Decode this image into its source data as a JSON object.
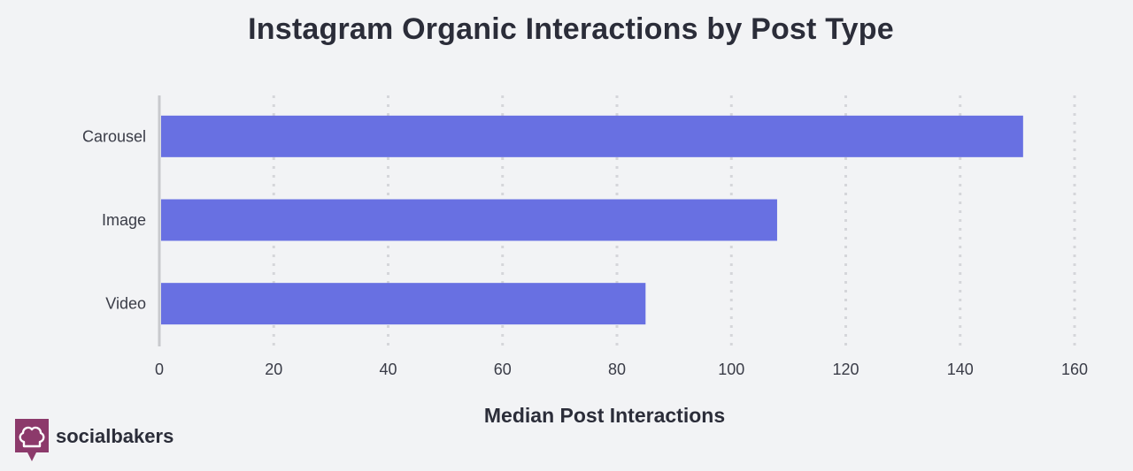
{
  "colors": {
    "background": "#f2f3f5",
    "bar": "#6870e2",
    "grid": "#d5d6da",
    "axis": "#c8c9cd",
    "text": "#2b2d39",
    "logo": "#8c3a6b"
  },
  "brand": {
    "name": "socialbakers",
    "icon": "chef-hat-icon"
  },
  "chart_data": {
    "type": "bar",
    "orientation": "horizontal",
    "title": "Instagram Organic Interactions by Post Type",
    "xlabel": "Median Post Interactions",
    "ylabel": "",
    "categories": [
      "Carousel",
      "Image",
      "Video"
    ],
    "values": [
      151,
      108,
      85
    ],
    "xlim": [
      0,
      160
    ],
    "xticks": [
      0,
      20,
      40,
      60,
      80,
      100,
      120,
      140,
      160
    ],
    "grid": true,
    "grid_style": "dotted vertical"
  }
}
